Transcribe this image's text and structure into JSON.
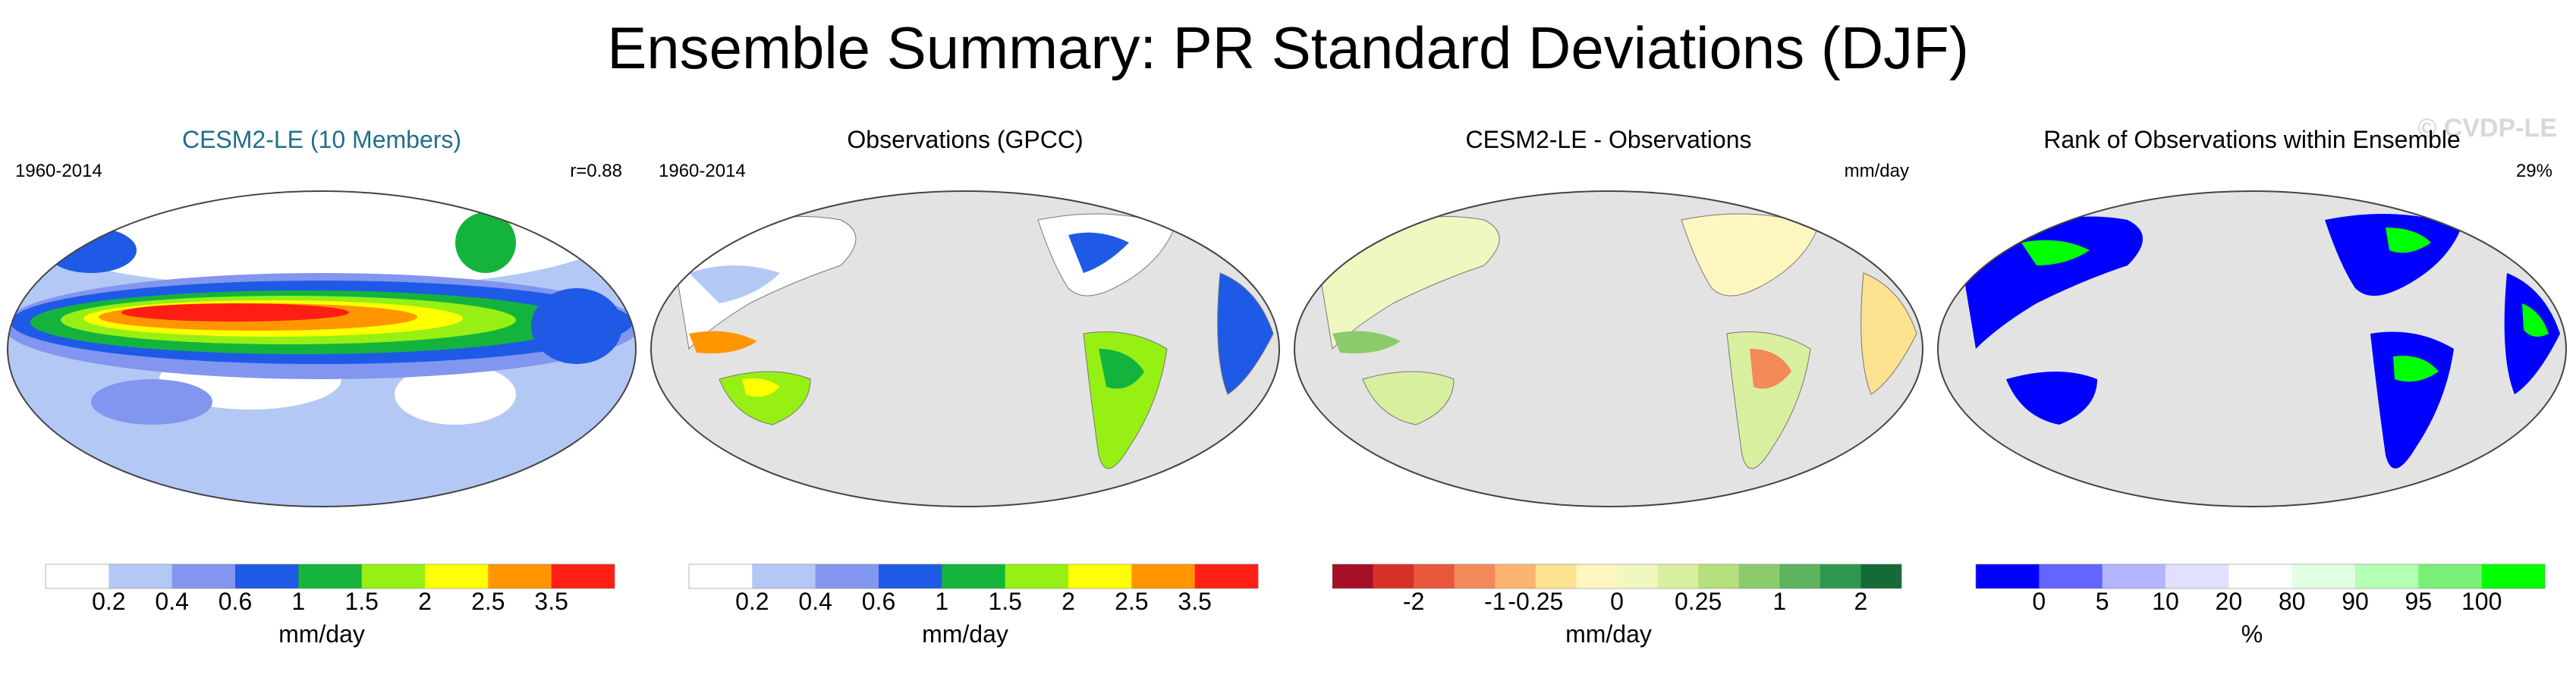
{
  "title": "Ensemble Summary: PR Standard Deviations (DJF)",
  "watermark": "© CVDP-LE",
  "panels": [
    {
      "title": "CESM2-LE (10 Members)",
      "title_color": "#1f6f8b",
      "left_label": "1960-2014",
      "right_label": "r=0.88",
      "colorbar": {
        "colors": [
          "#ffffff",
          "#b4c8f5",
          "#8296f0",
          "#1e5ae6",
          "#14b43c",
          "#96f014",
          "#ffff00",
          "#ff9600",
          "#ff1e14"
        ],
        "ticks": [
          "0.2",
          "0.4",
          "0.6",
          "1",
          "1.5",
          "2",
          "2.5",
          "3.5"
        ],
        "unit": "mm/day"
      }
    },
    {
      "title": "Observations (GPCC)",
      "title_color": "#000000",
      "left_label": "1960-2014",
      "right_label": "",
      "colorbar": {
        "colors": [
          "#ffffff",
          "#b4c8f5",
          "#8296f0",
          "#1e5ae6",
          "#14b43c",
          "#96f014",
          "#ffff00",
          "#ff9600",
          "#ff1e14"
        ],
        "ticks": [
          "0.2",
          "0.4",
          "0.6",
          "1",
          "1.5",
          "2",
          "2.5",
          "3.5"
        ],
        "unit": "mm/day"
      }
    },
    {
      "title": "CESM2-LE - Observations",
      "title_color": "#000000",
      "left_label": "",
      "right_label": "mm/day",
      "colorbar": {
        "colors": [
          "#a50f26",
          "#d73027",
          "#e8573c",
          "#f4895a",
          "#fbb470",
          "#fde28f",
          "#fff6c0",
          "#f1f7c0",
          "#d9efa0",
          "#b5de7c",
          "#8ccb6c",
          "#5db35e",
          "#2f984f",
          "#156a37"
        ],
        "ticks": [
          "-2",
          "-1",
          "-0.25",
          "0",
          "0.25",
          "1",
          "2"
        ],
        "tick_index": [
          2,
          4,
          5,
          7,
          9,
          11,
          13
        ],
        "unit": "mm/day"
      }
    },
    {
      "title": "Rank of Observations within Ensemble",
      "title_color": "#000000",
      "left_label": "",
      "right_label": "29%",
      "colorbar": {
        "colors": [
          "#0000ff",
          "#6464ff",
          "#b4b4ff",
          "#e1e1ff",
          "#ffffff",
          "#e1ffe1",
          "#b4ffb4",
          "#78f078",
          "#00ff00"
        ],
        "ticks": [
          "0",
          "5",
          "10",
          "20",
          "80",
          "90",
          "95",
          "100"
        ],
        "unit": "%"
      }
    }
  ]
}
